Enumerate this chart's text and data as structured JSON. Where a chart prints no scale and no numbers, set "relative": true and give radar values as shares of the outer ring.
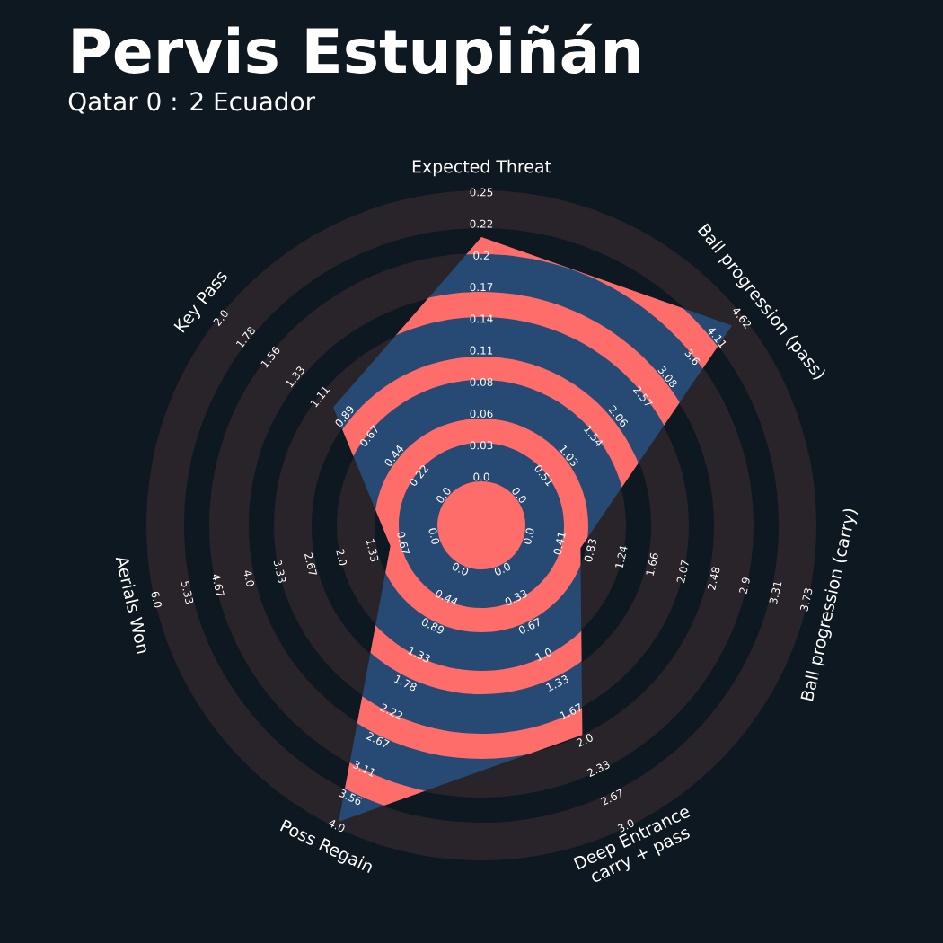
{
  "chart_data": {
    "type": "radar",
    "title": "Pervis Estupiñán",
    "subtitle": "Qatar 0 : 2 Ecuador",
    "relative": true,
    "categories": [
      "Expected Threat",
      "Ball progression (pass)",
      "Ball progression (carry)",
      "Deep Entrance carry + pass",
      "Poss Regain",
      "Aerials Won",
      "Key Pass"
    ],
    "series": [
      {
        "color": "#274a74",
        "values": [
          0.865,
          0.962,
          0.305,
          0.698,
          0.987,
          0.28,
          0.569
        ]
      }
    ],
    "annotations": [
      "0.0",
      "0.03",
      "0.06",
      "0.08",
      "0.11",
      "0.14",
      "0.17",
      "0.2",
      "0.22",
      "0.25",
      "0.0",
      "0.51",
      "1.03",
      "1.54",
      "2.06",
      "2.57",
      "3.08",
      "3.6",
      "4.11",
      "4.62",
      "0.0",
      "0.41",
      "0.83",
      "1.24",
      "1.66",
      "2.07",
      "2.48",
      "2.9",
      "3.31",
      "3.73",
      "0.0",
      "0.33",
      "0.67",
      "1.0",
      "1.33",
      "1.67",
      "2.0",
      "2.33",
      "2.67",
      "3.0",
      "0.0",
      "0.44",
      "0.89",
      "1.33",
      "1.78",
      "2.22",
      "2.67",
      "3.11",
      "3.56",
      "4.0",
      "0.0",
      "0.67",
      "1.33",
      "2.0",
      "2.67",
      "3.33",
      "4.0",
      "4.67",
      "5.33",
      "6.0",
      "0.0",
      "0.22",
      "0.44",
      "0.67",
      "0.89",
      "1.11",
      "1.33",
      "1.56",
      "1.78",
      "2.0"
    ]
  }
}
